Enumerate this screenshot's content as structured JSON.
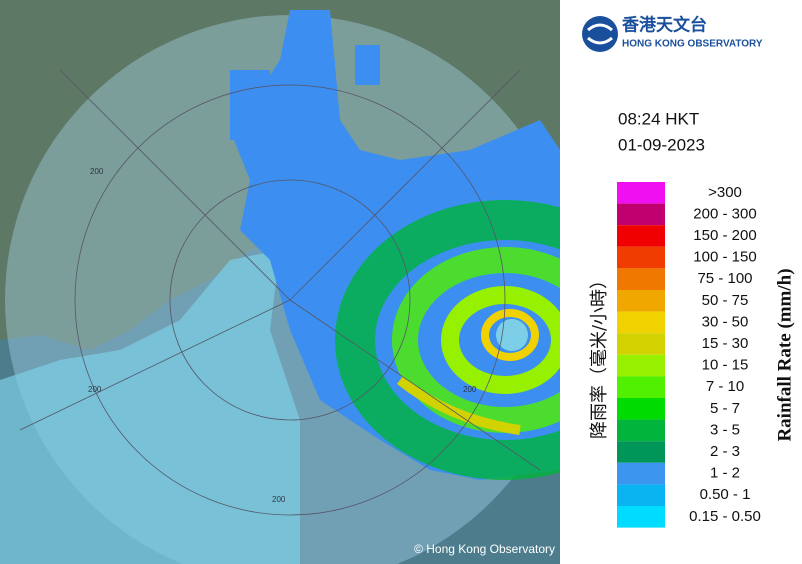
{
  "logo": {
    "chinese": "香港天文台",
    "english": "HONG KONG OBSERVATORY"
  },
  "time": "08:24 HKT",
  "date": "01-09-2023",
  "legend": {
    "title_chinese": "降雨率（毫米/小時）",
    "title_english": "Rainfall Rate (mm/h)",
    "items": [
      {
        "label": ">300",
        "color": "#f00ff0"
      },
      {
        "label": "200 - 300",
        "color": "#c0006e"
      },
      {
        "label": "150 - 200",
        "color": "#f00000"
      },
      {
        "label": "100 - 150",
        "color": "#f03c00"
      },
      {
        "label": "75 - 100",
        "color": "#f07800"
      },
      {
        "label": "50 - 75",
        "color": "#f0a800"
      },
      {
        "label": "30 - 50",
        "color": "#f0d200"
      },
      {
        "label": "15 - 30",
        "color": "#d2d200"
      },
      {
        "label": "10 - 15",
        "color": "#96f000"
      },
      {
        "label": "7 - 10",
        "color": "#50f000"
      },
      {
        "label": "5 - 7",
        "color": "#00dc00"
      },
      {
        "label": "3 - 5",
        "color": "#00b43c"
      },
      {
        "label": "2 - 3",
        "color": "#00965a"
      },
      {
        "label": "1 - 2",
        "color": "#3c96f0"
      },
      {
        "label": "0.50 - 1",
        "color": "#0ab4f0"
      },
      {
        "label": "0.15 - 0.50",
        "color": "#00dcff"
      }
    ]
  },
  "map": {
    "ring_labels": [
      "200",
      "200",
      "200",
      "200"
    ],
    "copyright": "© Hong Kong Observatory"
  }
}
